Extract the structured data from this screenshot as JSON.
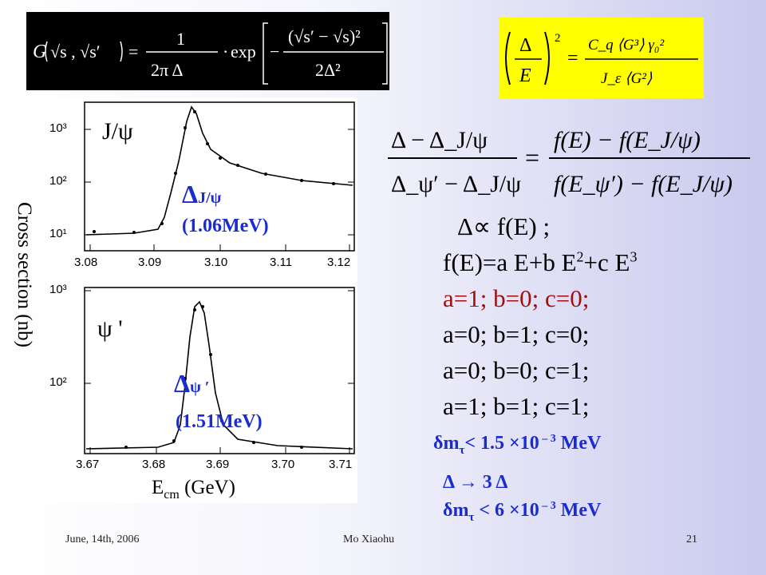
{
  "formula_gaussian": {
    "lhs": "G",
    "numerator_one": "1",
    "denominator_const": "2π Δ",
    "exp": "exp",
    "two_delta_sq": "2Δ²"
  },
  "formula_resolution": {
    "lhs_num": "Δ",
    "lhs_den": "E",
    "rhs_num": "C_q ⟨G³⟩ γ₀²",
    "rhs_den": "J_ε ⟨G²⟩"
  },
  "formula_ratio": {
    "lhs_num": "Δ − Δ_J/ψ",
    "lhs_den": "Δ_ψ′ − Δ_J/ψ",
    "rhs_num": "f(E) − f(E_J/ψ)",
    "rhs_den": "f(E_ψ′) − f(E_J/ψ)"
  },
  "plot_top": {
    "label": "J/ψ",
    "delta_label": "Δ",
    "delta_sub": "J/ψ",
    "delta_value": "(1.06MeV)",
    "y_ticks": [
      "10³",
      "10²",
      "10¹"
    ],
    "x_ticks": [
      "3.08",
      "3.09",
      "3.10",
      "3.11",
      "3.12"
    ]
  },
  "plot_bottom": {
    "label": "ψ '",
    "delta_label": "Δ",
    "delta_sub": "ψ ′",
    "delta_value": "(1.51MeV)",
    "y_ticks": [
      "10³",
      "10²"
    ],
    "x_ticks": [
      "3.67",
      "3.68",
      "3.69",
      "3.70",
      "3.71"
    ]
  },
  "y_axis_label": "Cross section (nb)",
  "x_axis_label_main": "E",
  "x_axis_label_sub": "cm",
  "x_axis_label_unit": "(GeV)",
  "conditions": {
    "proportional": "Δ∝ f(E) ;",
    "f_def_pre": "f(E)=a E+b E",
    "f_def_exp2": "2",
    "f_def_mid": "+c E",
    "f_def_exp3": "3",
    "line1": "a=1; b=0; c=0;",
    "line2": "a=0; b=1; c=0;",
    "line3": "a=0; b=0; c=1;",
    "line4": "a=1; b=1; c=1;"
  },
  "results": {
    "r1_pre": "δm",
    "r1_sub": "τ",
    "r1_post": "< 1.5 ×10",
    "r1_exp": " – 3",
    "r1_unit": " MeV",
    "arrow": "Δ → 3 Δ",
    "r2_pre": "δm",
    "r2_sub": "τ",
    "r2_post": " < 6 ×10",
    "r2_exp": " – 3",
    "r2_unit": " MeV"
  },
  "footer": {
    "date": "June, 14th, 2006",
    "author": "Mo Xiaohu",
    "page": "21"
  },
  "colors": {
    "blue": "#1a2bd0",
    "red": "#a01010",
    "yellow": "#ffff00"
  }
}
